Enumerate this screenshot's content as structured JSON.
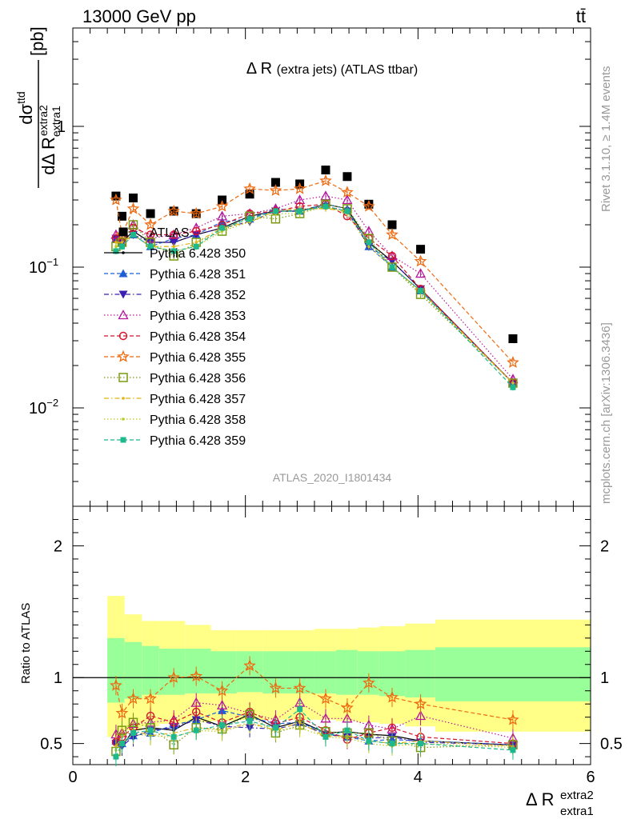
{
  "header": {
    "left": "13000 GeV pp",
    "right": "tt̄"
  },
  "side_labels": {
    "rivet": "Rivet 3.1.10, ≥ 1.4M events",
    "mcplots": "mcplots.cern.ch [arXiv:1306.3436]"
  },
  "analysis_tag": "ATLAS_2020_I1801434",
  "chart_data": [
    {
      "type": "scatter",
      "panel": "main",
      "title": "Δ R (extra jets) (ATLAS ttbar)",
      "ylabel": "dσ^ttd / dΔ R_extra1^extra2 [pb]",
      "ylabel_parts": {
        "num": "dσ",
        "num_sup": "ttd",
        "den": "dΔ R",
        "den_sub": "extra1",
        "den_sup": "extra2",
        "unit": "[pb]"
      },
      "yscale": "log",
      "xlim": [
        0,
        6
      ],
      "ylim": [
        0.002,
        5
      ],
      "y_ticks": [
        {
          "value": 1,
          "label": "1"
        },
        {
          "value": 0.1,
          "label": "10",
          "sup": "−1"
        },
        {
          "value": 0.01,
          "label": "10",
          "sup": "−2"
        }
      ],
      "legend_position": "top-left",
      "x": [
        0.5,
        0.57,
        0.7,
        0.9,
        1.17,
        1.43,
        1.73,
        2.05,
        2.35,
        2.63,
        2.93,
        3.18,
        3.43,
        3.7,
        4.03,
        5.1
      ],
      "series": [
        {
          "name": "ATLAS",
          "color": "#000000",
          "marker": "square",
          "line": "none",
          "values": [
            0.32,
            0.23,
            0.31,
            0.24,
            0.25,
            0.24,
            0.3,
            0.33,
            0.4,
            0.39,
            0.49,
            0.44,
            0.28,
            0.2,
            0.134,
            0.031
          ]
        },
        {
          "name": "Pythia 6.428 350",
          "color": "#000000",
          "marker": "hollow-circle-dot",
          "line": "solid",
          "values": [
            0.16,
            0.15,
            0.18,
            0.15,
            0.15,
            0.17,
            0.19,
            0.23,
            0.25,
            0.25,
            0.28,
            0.26,
            0.15,
            0.11,
            0.07,
            0.015
          ]
        },
        {
          "name": "Pythia 6.428 351",
          "color": "#1f5fd6",
          "marker": "triangle-up",
          "line": "dashed",
          "values": [
            0.16,
            0.15,
            0.17,
            0.14,
            0.16,
            0.17,
            0.21,
            0.22,
            0.26,
            0.25,
            0.28,
            0.26,
            0.14,
            0.1,
            0.068,
            0.015
          ]
        },
        {
          "name": "Pythia 6.428 352",
          "color": "#3a1fb0",
          "marker": "triangle-down",
          "line": "dashdot",
          "values": [
            0.16,
            0.15,
            0.17,
            0.15,
            0.15,
            0.17,
            0.19,
            0.21,
            0.25,
            0.25,
            0.27,
            0.25,
            0.14,
            0.11,
            0.07,
            0.015
          ]
        },
        {
          "name": "Pythia 6.428 353",
          "color": "#b5169b",
          "marker": "hollow-triangle-up",
          "line": "dotted",
          "values": [
            0.17,
            0.17,
            0.2,
            0.16,
            0.17,
            0.19,
            0.23,
            0.24,
            0.26,
            0.3,
            0.32,
            0.3,
            0.18,
            0.12,
            0.09,
            0.016
          ]
        },
        {
          "name": "Pythia 6.428 354",
          "color": "#d4152a",
          "marker": "hollow-circle",
          "line": "dashed",
          "values": [
            0.16,
            0.15,
            0.19,
            0.17,
            0.17,
            0.18,
            0.2,
            0.24,
            0.25,
            0.27,
            0.28,
            0.23,
            0.16,
            0.12,
            0.07,
            0.015
          ]
        },
        {
          "name": "Pythia 6.428 355",
          "color": "#ee6a10",
          "marker": "hollow-star",
          "line": "dashed",
          "values": [
            0.3,
            0.17,
            0.26,
            0.2,
            0.25,
            0.24,
            0.27,
            0.36,
            0.35,
            0.36,
            0.41,
            0.34,
            0.27,
            0.17,
            0.11,
            0.021
          ]
        },
        {
          "name": "Pythia 6.428 356",
          "color": "#7a9a12",
          "marker": "hollow-square",
          "line": "dotted",
          "values": [
            0.14,
            0.15,
            0.2,
            0.15,
            0.12,
            0.15,
            0.18,
            0.23,
            0.22,
            0.24,
            0.28,
            0.26,
            0.16,
            0.1,
            0.064,
            0.015
          ]
        },
        {
          "name": "Pythia 6.428 357",
          "color": "#e0b416",
          "marker": "small-dot",
          "line": "dashdot",
          "values": [
            0.15,
            0.15,
            0.17,
            0.14,
            0.14,
            0.15,
            0.19,
            0.21,
            0.25,
            0.26,
            0.26,
            0.25,
            0.15,
            0.1,
            0.068,
            0.015
          ]
        },
        {
          "name": "Pythia 6.428 358",
          "color": "#bcc81e",
          "marker": "small-dot",
          "line": "dotted",
          "values": [
            0.14,
            0.14,
            0.17,
            0.14,
            0.13,
            0.14,
            0.18,
            0.21,
            0.24,
            0.24,
            0.27,
            0.24,
            0.14,
            0.1,
            0.066,
            0.015
          ]
        },
        {
          "name": "Pythia 6.428 359",
          "color": "#1eb88c",
          "marker": "filled-square",
          "line": "dashed",
          "values": [
            0.13,
            0.14,
            0.17,
            0.14,
            0.13,
            0.14,
            0.19,
            0.22,
            0.25,
            0.25,
            0.27,
            0.25,
            0.15,
            0.1,
            0.068,
            0.014
          ]
        }
      ]
    },
    {
      "type": "scatter",
      "panel": "ratio",
      "ylabel": "Ratio to ATLAS",
      "xlabel": "Δ R",
      "xlabel_parts": {
        "main": "Δ R",
        "sup": "extra2",
        "sub": "extra1"
      },
      "xlim": [
        0,
        6
      ],
      "ylim": [
        0.34,
        2.3
      ],
      "x_ticks": [
        0,
        2,
        4,
        6
      ],
      "y_ticks": [
        0.5,
        1,
        2
      ],
      "reference_line": 1,
      "bands": [
        {
          "x_edges": [
            0.4,
            0.6,
            0.8,
            1.0,
            1.3,
            1.6,
            1.9,
            2.2,
            2.5,
            2.8,
            3.05,
            3.3,
            3.55,
            3.85,
            4.2,
            6.0
          ],
          "inner": [
            [
              0.81,
              1.3
            ],
            [
              0.84,
              1.27
            ],
            [
              0.87,
              1.24
            ],
            [
              0.87,
              1.22
            ],
            [
              0.88,
              1.22
            ],
            [
              0.88,
              1.2
            ],
            [
              0.89,
              1.2
            ],
            [
              0.88,
              1.2
            ],
            [
              0.88,
              1.2
            ],
            [
              0.88,
              1.2
            ],
            [
              0.87,
              1.21
            ],
            [
              0.87,
              1.2
            ],
            [
              0.86,
              1.2
            ],
            [
              0.85,
              1.21
            ],
            [
              0.82,
              1.23
            ]
          ],
          "outer": [
            [
              0.55,
              1.62
            ],
            [
              0.6,
              1.48
            ],
            [
              0.63,
              1.43
            ],
            [
              0.65,
              1.43
            ],
            [
              0.66,
              1.4
            ],
            [
              0.67,
              1.36
            ],
            [
              0.68,
              1.36
            ],
            [
              0.68,
              1.36
            ],
            [
              0.68,
              1.36
            ],
            [
              0.68,
              1.37
            ],
            [
              0.67,
              1.37
            ],
            [
              0.66,
              1.38
            ],
            [
              0.65,
              1.39
            ],
            [
              0.63,
              1.41
            ],
            [
              0.59,
              1.44
            ]
          ],
          "inner_color": "#99ff99",
          "outer_color": "#ffff88"
        }
      ],
      "x": [
        0.5,
        0.57,
        0.7,
        0.9,
        1.17,
        1.43,
        1.73,
        2.05,
        2.35,
        2.63,
        2.93,
        3.18,
        3.43,
        3.7,
        4.03,
        5.1
      ],
      "series": [
        {
          "name": "Pythia 6.428 350",
          "values": [
            0.52,
            0.48,
            0.6,
            0.62,
            0.6,
            0.7,
            0.63,
            0.72,
            0.62,
            0.67,
            0.58,
            0.59,
            0.57,
            0.56,
            0.52,
            0.49
          ]
        },
        {
          "name": "Pythia 6.428 351",
          "values": [
            0.52,
            0.5,
            0.56,
            0.58,
            0.64,
            0.68,
            0.75,
            0.7,
            0.65,
            0.66,
            0.58,
            0.55,
            0.52,
            0.53,
            0.52,
            0.49
          ]
        },
        {
          "name": "Pythia 6.428 352",
          "values": [
            0.5,
            0.48,
            0.55,
            0.6,
            0.62,
            0.68,
            0.63,
            0.62,
            0.61,
            0.65,
            0.57,
            0.55,
            0.54,
            0.55,
            0.51,
            0.49
          ]
        },
        {
          "name": "Pythia 6.428 353",
          "values": [
            0.57,
            0.58,
            0.65,
            0.66,
            0.68,
            0.81,
            0.79,
            0.73,
            0.68,
            0.81,
            0.69,
            0.69,
            0.64,
            0.61,
            0.71,
            0.54
          ]
        },
        {
          "name": "Pythia 6.428 354",
          "values": [
            0.51,
            0.55,
            0.62,
            0.71,
            0.66,
            0.74,
            0.66,
            0.74,
            0.65,
            0.7,
            0.6,
            0.53,
            0.58,
            0.62,
            0.55,
            0.5
          ]
        },
        {
          "name": "Pythia 6.428 355",
          "values": [
            0.94,
            0.73,
            0.84,
            0.84,
            1.0,
            1.01,
            0.9,
            1.09,
            0.92,
            0.92,
            0.84,
            0.77,
            0.96,
            0.85,
            0.8,
            0.68
          ]
        },
        {
          "name": "Pythia 6.428 356",
          "values": [
            0.44,
            0.6,
            0.66,
            0.62,
            0.49,
            0.62,
            0.61,
            0.72,
            0.58,
            0.64,
            0.59,
            0.58,
            0.58,
            0.52,
            0.47,
            0.49
          ]
        },
        {
          "name": "Pythia 6.428 357",
          "values": [
            0.48,
            0.55,
            0.6,
            0.56,
            0.58,
            0.62,
            0.6,
            0.66,
            0.6,
            0.66,
            0.55,
            0.56,
            0.52,
            0.5,
            0.52,
            0.48
          ]
        },
        {
          "name": "Pythia 6.428 358",
          "values": [
            0.45,
            0.5,
            0.57,
            0.56,
            0.55,
            0.6,
            0.59,
            0.65,
            0.6,
            0.62,
            0.55,
            0.54,
            0.5,
            0.48,
            0.5,
            0.47
          ]
        },
        {
          "name": "Pythia 6.428 359",
          "values": [
            0.4,
            0.5,
            0.58,
            0.6,
            0.55,
            0.6,
            0.64,
            0.67,
            0.62,
            0.76,
            0.55,
            0.6,
            0.52,
            0.5,
            0.5,
            0.45
          ]
        }
      ]
    }
  ]
}
